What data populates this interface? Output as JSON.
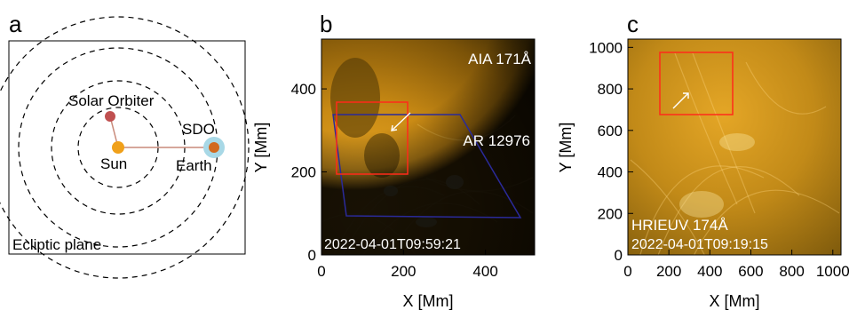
{
  "panel_a": {
    "letter": "a",
    "labels": {
      "solar_orbiter": "Solar Orbiter",
      "sdo": "SDO",
      "sun": "Sun",
      "earth": "Earth",
      "plane": "Ecliptic plane"
    },
    "colors": {
      "sun": "#f0a01a",
      "solar_orbiter": "#c05050",
      "earth": "#d2691e",
      "sdo_halo": "#a8d8e6",
      "link": "#c98a7a"
    }
  },
  "panel_b": {
    "letter": "b",
    "instrument": "AIA 171Å",
    "region": "AR 12976",
    "timestamp": "2022-04-01T09:59:21",
    "xlabel": "X [Mm]",
    "ylabel": "Y [Mm]",
    "xticks": [
      "0",
      "200",
      "400"
    ],
    "yticks": [
      "0",
      "200",
      "400"
    ],
    "colors": {
      "box": "#ff2a1a",
      "polygon": "#2a2a9a"
    }
  },
  "panel_c": {
    "letter": "c",
    "instrument": "HRIEUV 174Å",
    "timestamp": "2022-04-01T09:19:15",
    "xlabel": "X [Mm]",
    "ylabel": "Y [Mm]",
    "xticks": [
      "0",
      "200",
      "400",
      "600",
      "800",
      "1000"
    ],
    "yticks": [
      "0",
      "200",
      "400",
      "600",
      "800",
      "1000"
    ],
    "colors": {
      "box": "#ff2a1a"
    }
  }
}
